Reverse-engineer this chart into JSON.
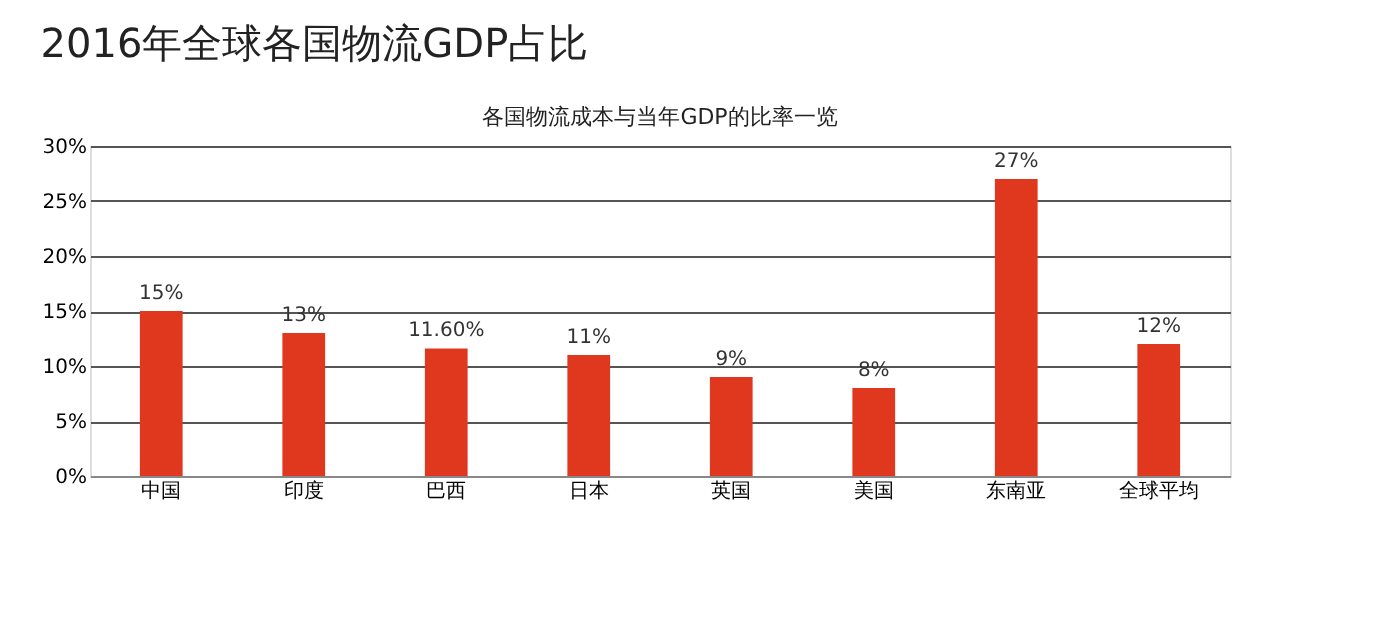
{
  "chart_data": {
    "type": "bar",
    "title": "2016年全球各国物流GDP占比",
    "subtitle": "各国物流成本与当年GDP的比率一览",
    "categories": [
      "中国",
      "印度",
      "巴西",
      "日本",
      "英国",
      "美国",
      "东南亚",
      "全球平均"
    ],
    "values": [
      15,
      13,
      11.6,
      11,
      9,
      8,
      27,
      12
    ],
    "value_labels": [
      "15%",
      "13%",
      "11.60%",
      "11%",
      "9%",
      "8%",
      "27%",
      "12%"
    ],
    "color": "#e0381e",
    "ylim": [
      0,
      30
    ],
    "yticks": [
      {
        "value": 0,
        "label": "0%"
      },
      {
        "value": 5,
        "label": "5%"
      },
      {
        "value": 10,
        "label": "10%"
      },
      {
        "value": 15,
        "label": "15%"
      },
      {
        "value": 20,
        "label": "20%"
      },
      {
        "value": 25,
        "label": "25%"
      },
      {
        "value": 30,
        "label": "30%"
      }
    ],
    "grid": "y"
  }
}
